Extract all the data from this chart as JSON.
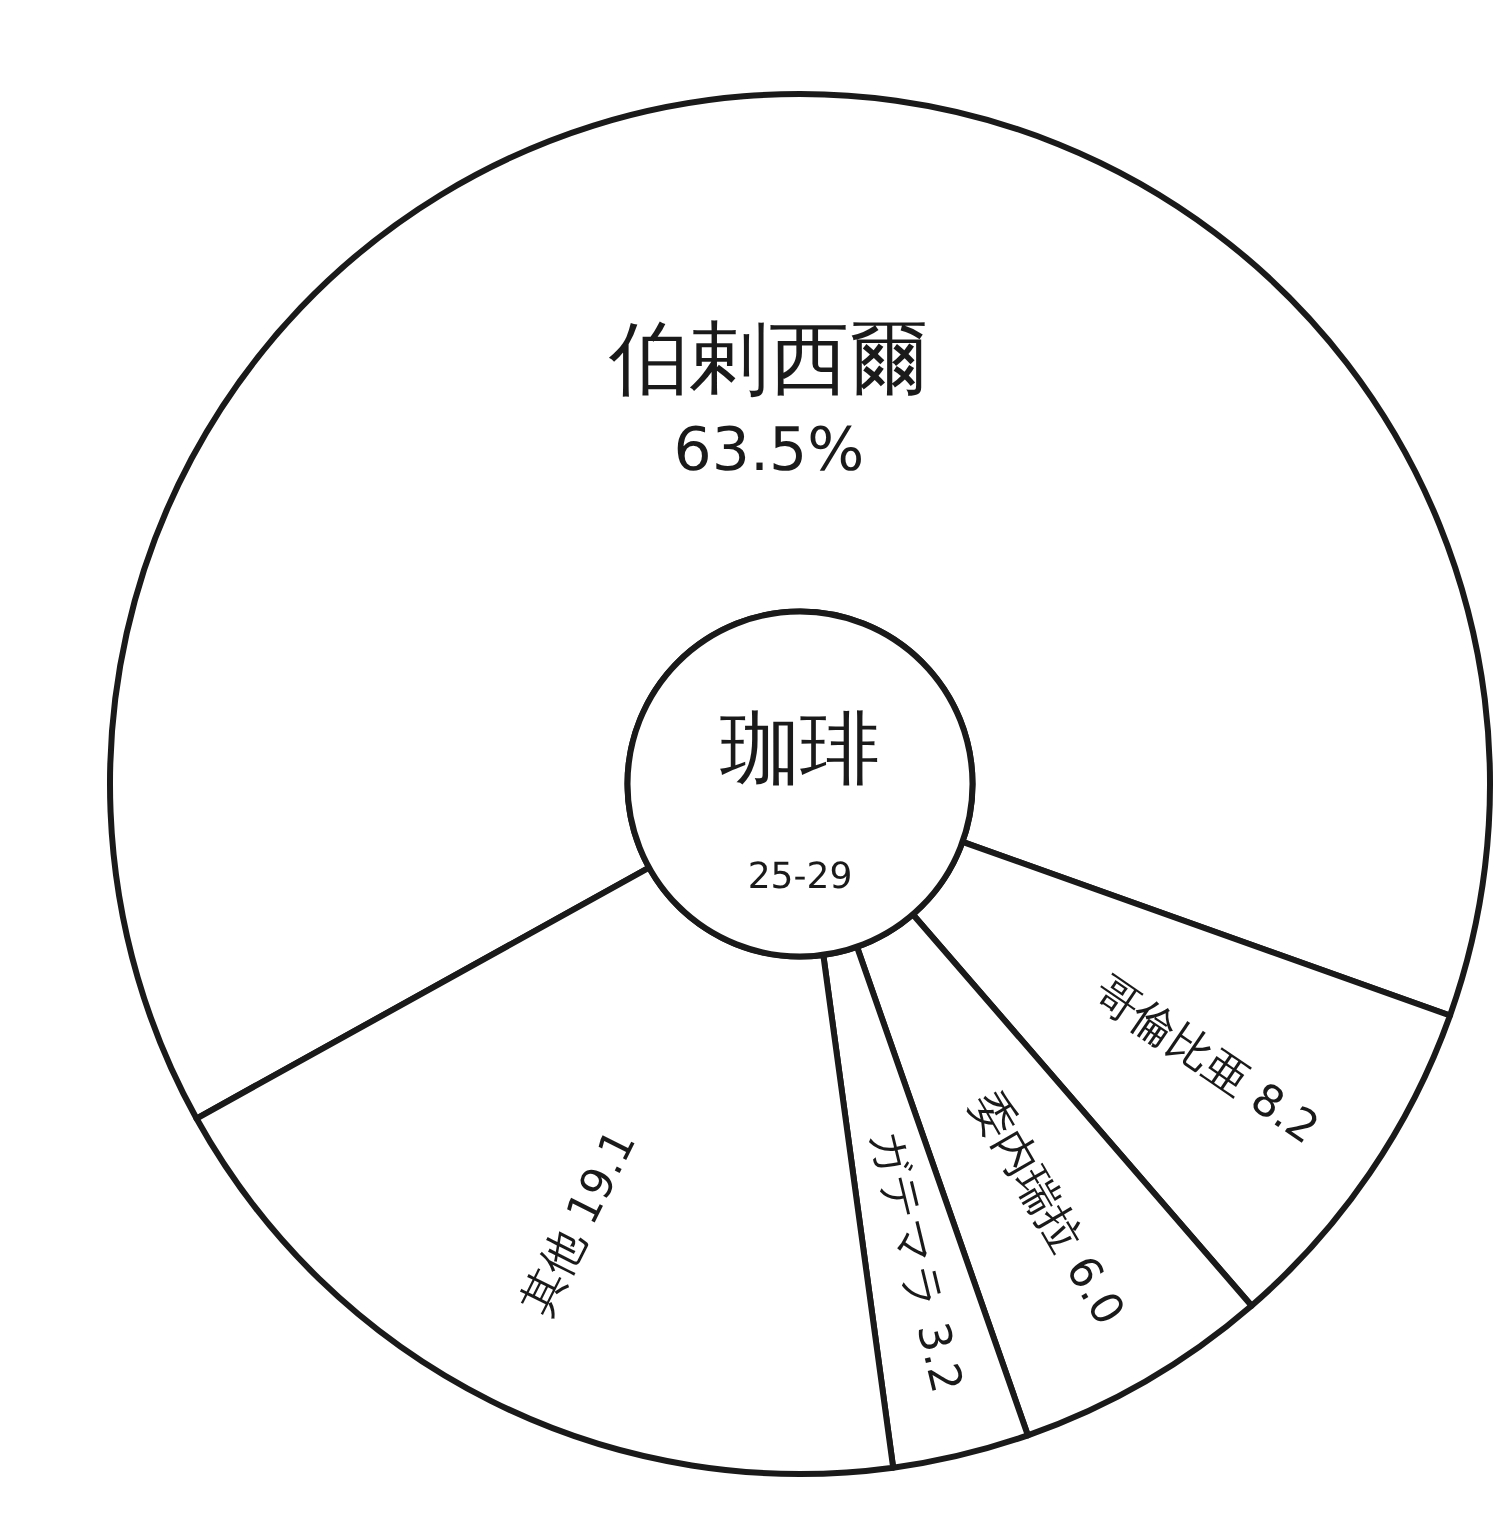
{
  "chart_data": {
    "type": "donut",
    "title": "珈琲",
    "subtitle": "25-29",
    "categories": [
      "伯剌西爾",
      "哥倫比亜",
      "委内瑞拉",
      "ガテマラ",
      "其他"
    ],
    "values": [
      63.5,
      8.2,
      6.0,
      3.2,
      19.1
    ],
    "value_labels": [
      "63.5%",
      "8.2",
      "6.0",
      "3.2",
      "19.1"
    ],
    "colors": [
      "#ffffff",
      "#ffffff",
      "#ffffff",
      "#ffffff",
      "#ffffff"
    ]
  }
}
